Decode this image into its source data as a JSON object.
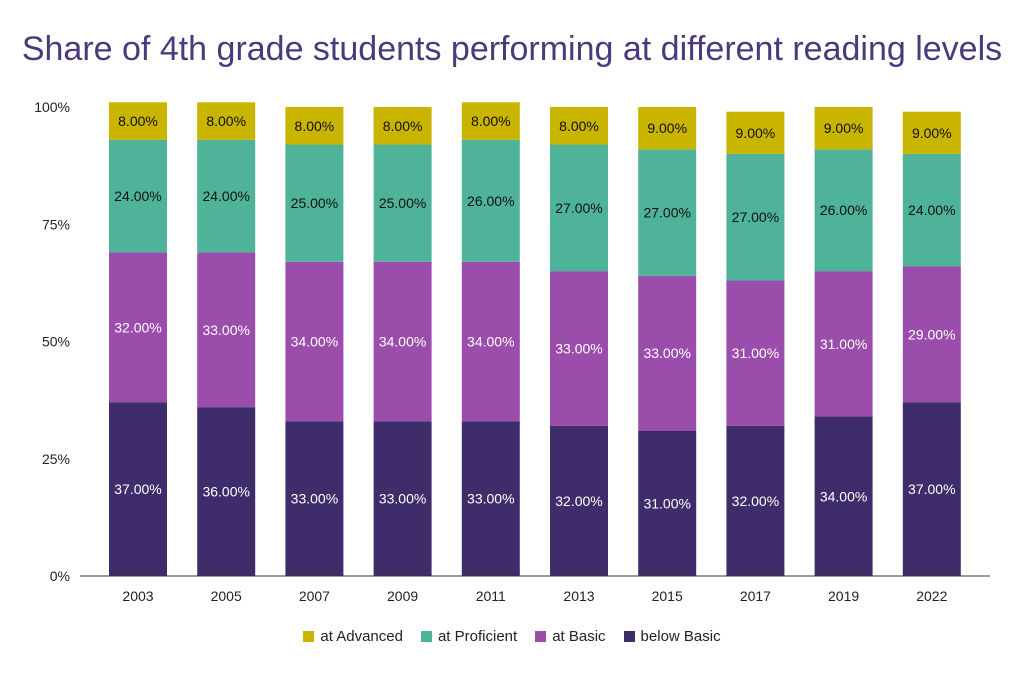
{
  "chart_data": {
    "type": "bar",
    "stacked": true,
    "title": "Share of 4th grade students performing at different reading levels",
    "xlabel": "",
    "ylabel": "",
    "ylim": [
      0,
      100
    ],
    "yticks": [
      "0%",
      "25%",
      "50%",
      "75%",
      "100%"
    ],
    "categories": [
      "2003",
      "2005",
      "2007",
      "2009",
      "2011",
      "2013",
      "2015",
      "2017",
      "2019",
      "2022"
    ],
    "series": [
      {
        "name": "below Basic",
        "color": "#3f2d6b",
        "label_color": "#ffffff",
        "values": [
          37,
          36,
          33,
          33,
          33,
          32,
          31,
          32,
          34,
          37
        ],
        "labels": [
          "37.00%",
          "36.00%",
          "33.00%",
          "33.00%",
          "33.00%",
          "32.00%",
          "31.00%",
          "32.00%",
          "34.00%",
          "37.00%"
        ]
      },
      {
        "name": "at Basic",
        "color": "#9b4dab",
        "label_color": "#ffffff",
        "values": [
          32,
          33,
          34,
          34,
          34,
          33,
          33,
          31,
          31,
          29
        ],
        "labels": [
          "32.00%",
          "33.00%",
          "34.00%",
          "34.00%",
          "34.00%",
          "33.00%",
          "33.00%",
          "31.00%",
          "31.00%",
          "29.00%"
        ]
      },
      {
        "name": "at Proficient",
        "color": "#4fb39a",
        "label_color": "#111111",
        "values": [
          24,
          24,
          25,
          25,
          26,
          27,
          27,
          27,
          26,
          24
        ],
        "labels": [
          "24.00%",
          "24.00%",
          "25.00%",
          "25.00%",
          "26.00%",
          "27.00%",
          "27.00%",
          "27.00%",
          "26.00%",
          "24.00%"
        ]
      },
      {
        "name": "at Advanced",
        "color": "#c9b400",
        "label_color": "#111111",
        "values": [
          8,
          8,
          8,
          8,
          8,
          8,
          9,
          9,
          9,
          9
        ],
        "labels": [
          "8.00%",
          "8.00%",
          "8.00%",
          "8.00%",
          "8.00%",
          "8.00%",
          "9.00%",
          "9.00%",
          "9.00%",
          "9.00%"
        ]
      }
    ],
    "legend": {
      "placement": "bottom",
      "order": [
        "at Advanced",
        "at Proficient",
        "at Basic",
        "below Basic"
      ]
    },
    "grid": false
  }
}
